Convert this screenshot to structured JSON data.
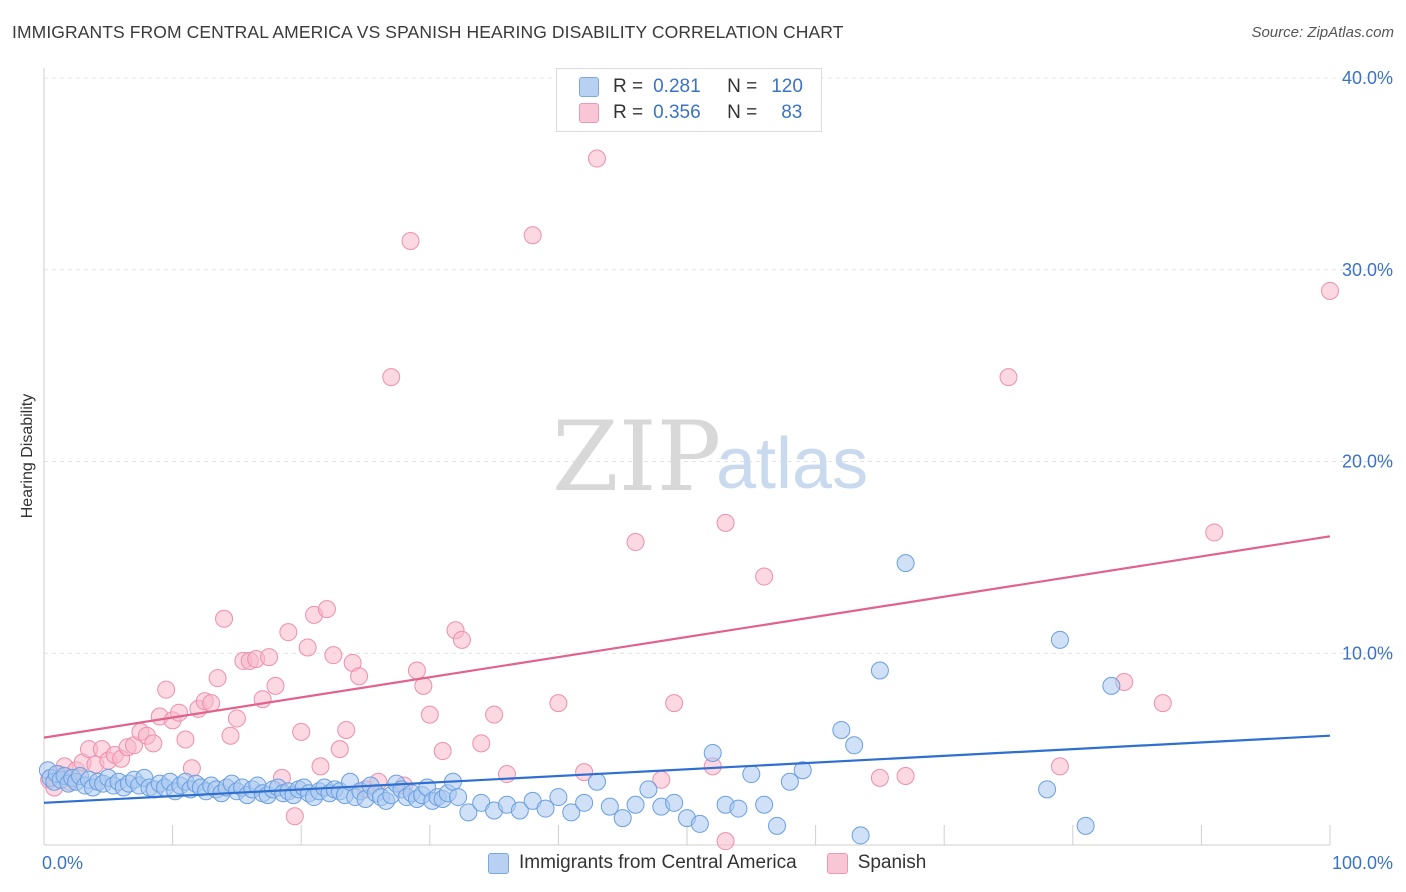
{
  "header": {
    "title": "IMMIGRANTS FROM CENTRAL AMERICA VS SPANISH HEARING DISABILITY CORRELATION CHART",
    "source": "Source: ZipAtlas.com"
  },
  "watermark": {
    "zip": "ZIP",
    "atlas": "atlas"
  },
  "legend": {
    "rows": [
      {
        "r_label": "R =",
        "r_value": "0.281",
        "n_label": "N =",
        "n_value": "120",
        "color": "#a9c8f0"
      },
      {
        "r_label": "R =",
        "r_value": "0.356",
        "n_label": "N =",
        "n_value": "83",
        "color": "#f7b8cb"
      }
    ]
  },
  "bottom_legend": {
    "series1": "Immigrants from Central America",
    "series2": "Spanish"
  },
  "chart_data": {
    "type": "scatter",
    "title": "IMMIGRANTS FROM CENTRAL AMERICA VS SPANISH HEARING DISABILITY CORRELATION CHART",
    "xlabel": "",
    "ylabel": "Hearing Disability",
    "xlim": [
      0,
      100
    ],
    "ylim": [
      0,
      40
    ],
    "x_tick_labels": [
      "0.0%",
      "100.0%"
    ],
    "y_tick_labels": [
      "10.0%",
      "20.0%",
      "30.0%",
      "40.0%"
    ],
    "y_ticks": [
      10,
      20,
      30,
      40
    ],
    "grid": "horizontal dashed",
    "legend_position": "top-center",
    "colors": {
      "blue_fill": "#a9c8f0",
      "blue_stroke": "#6a9fe0",
      "blue_line": "#2e6fd0",
      "pink_fill": "#f7b8cb",
      "pink_stroke": "#ee8fac",
      "pink_line": "#e0628d"
    },
    "series": [
      {
        "name": "Immigrants from Central America",
        "r": 0.281,
        "n": 120,
        "trend": {
          "x": [
            0,
            100
          ],
          "y": [
            2.2,
            5.7
          ]
        },
        "points": [
          [
            0.3,
            3.9
          ],
          [
            0.5,
            3.5
          ],
          [
            0.8,
            3.3
          ],
          [
            1.0,
            3.7
          ],
          [
            1.3,
            3.4
          ],
          [
            1.6,
            3.6
          ],
          [
            1.9,
            3.2
          ],
          [
            2.2,
            3.5
          ],
          [
            2.5,
            3.3
          ],
          [
            2.8,
            3.6
          ],
          [
            3.2,
            3.1
          ],
          [
            3.5,
            3.4
          ],
          [
            3.8,
            3.0
          ],
          [
            4.2,
            3.3
          ],
          [
            4.6,
            3.2
          ],
          [
            5.0,
            3.5
          ],
          [
            5.4,
            3.1
          ],
          [
            5.8,
            3.3
          ],
          [
            6.2,
            3.0
          ],
          [
            6.6,
            3.2
          ],
          [
            7.0,
            3.4
          ],
          [
            7.4,
            3.1
          ],
          [
            7.8,
            3.5
          ],
          [
            8.2,
            3.0
          ],
          [
            8.6,
            2.9
          ],
          [
            9.0,
            3.2
          ],
          [
            9.4,
            3.0
          ],
          [
            9.8,
            3.3
          ],
          [
            10.2,
            2.8
          ],
          [
            10.6,
            3.1
          ],
          [
            11.0,
            3.3
          ],
          [
            11.4,
            2.9
          ],
          [
            11.8,
            3.2
          ],
          [
            12.2,
            3.0
          ],
          [
            12.6,
            2.8
          ],
          [
            13.0,
            3.1
          ],
          [
            13.4,
            2.9
          ],
          [
            13.8,
            2.7
          ],
          [
            14.2,
            3.0
          ],
          [
            14.6,
            3.2
          ],
          [
            15.0,
            2.8
          ],
          [
            15.4,
            3.0
          ],
          [
            15.8,
            2.6
          ],
          [
            16.2,
            2.9
          ],
          [
            16.6,
            3.1
          ],
          [
            17.0,
            2.7
          ],
          [
            17.4,
            2.6
          ],
          [
            17.8,
            2.9
          ],
          [
            18.2,
            3.0
          ],
          [
            18.6,
            2.7
          ],
          [
            19.0,
            2.8
          ],
          [
            19.4,
            2.6
          ],
          [
            19.8,
            2.9
          ],
          [
            20.2,
            3.0
          ],
          [
            20.6,
            2.7
          ],
          [
            21.0,
            2.5
          ],
          [
            21.4,
            2.8
          ],
          [
            21.8,
            3.0
          ],
          [
            22.2,
            2.7
          ],
          [
            22.6,
            2.9
          ],
          [
            23.0,
            2.8
          ],
          [
            23.4,
            2.6
          ],
          [
            23.8,
            3.3
          ],
          [
            24.2,
            2.5
          ],
          [
            24.6,
            2.8
          ],
          [
            25.0,
            2.4
          ],
          [
            25.4,
            3.1
          ],
          [
            25.8,
            2.7
          ],
          [
            26.2,
            2.5
          ],
          [
            26.6,
            2.3
          ],
          [
            27.0,
            2.6
          ],
          [
            27.4,
            3.2
          ],
          [
            27.8,
            2.9
          ],
          [
            28.2,
            2.5
          ],
          [
            28.6,
            2.7
          ],
          [
            29.0,
            2.4
          ],
          [
            29.4,
            2.6
          ],
          [
            29.8,
            3.0
          ],
          [
            30.2,
            2.3
          ],
          [
            30.6,
            2.5
          ],
          [
            31.0,
            2.4
          ],
          [
            31.4,
            2.7
          ],
          [
            31.8,
            3.3
          ],
          [
            32.2,
            2.5
          ],
          [
            33.0,
            1.7
          ],
          [
            34.0,
            2.2
          ],
          [
            35.0,
            1.8
          ],
          [
            36.0,
            2.1
          ],
          [
            37.0,
            1.8
          ],
          [
            38.0,
            2.3
          ],
          [
            39.0,
            1.9
          ],
          [
            40.0,
            2.5
          ],
          [
            41.0,
            1.7
          ],
          [
            42.0,
            2.2
          ],
          [
            43.0,
            3.3
          ],
          [
            44.0,
            2.0
          ],
          [
            45.0,
            1.4
          ],
          [
            46.0,
            2.1
          ],
          [
            47.0,
            2.9
          ],
          [
            48.0,
            2.0
          ],
          [
            49.0,
            2.2
          ],
          [
            50.0,
            1.4
          ],
          [
            51.0,
            1.1
          ],
          [
            52.0,
            4.8
          ],
          [
            53.0,
            2.1
          ],
          [
            54.0,
            1.9
          ],
          [
            55.0,
            3.7
          ],
          [
            56.0,
            2.1
          ],
          [
            57.0,
            1.0
          ],
          [
            58.0,
            3.3
          ],
          [
            59.0,
            3.9
          ],
          [
            62.0,
            6.0
          ],
          [
            63.0,
            5.2
          ],
          [
            65.0,
            9.1
          ],
          [
            67.0,
            14.7
          ],
          [
            78.0,
            2.9
          ],
          [
            79.0,
            10.7
          ],
          [
            81.0,
            1.0
          ],
          [
            83.0,
            8.3
          ],
          [
            63.5,
            0.5
          ]
        ]
      },
      {
        "name": "Spanish",
        "r": 0.356,
        "n": 83,
        "trend": {
          "x": [
            0,
            100
          ],
          "y": [
            5.6,
            16.1
          ]
        },
        "points": [
          [
            0.4,
            3.4
          ],
          [
            0.8,
            3.0
          ],
          [
            1.2,
            3.7
          ],
          [
            1.6,
            4.1
          ],
          [
            2.0,
            3.3
          ],
          [
            2.5,
            3.9
          ],
          [
            3.0,
            4.3
          ],
          [
            3.5,
            5.0
          ],
          [
            4.0,
            4.2
          ],
          [
            4.5,
            5.0
          ],
          [
            5.0,
            4.4
          ],
          [
            5.5,
            4.7
          ],
          [
            6.0,
            4.5
          ],
          [
            6.5,
            5.1
          ],
          [
            7.0,
            5.2
          ],
          [
            7.5,
            5.9
          ],
          [
            8.0,
            5.7
          ],
          [
            8.5,
            5.3
          ],
          [
            9.0,
            6.7
          ],
          [
            9.5,
            8.1
          ],
          [
            10.0,
            6.5
          ],
          [
            10.5,
            6.9
          ],
          [
            11.0,
            5.5
          ],
          [
            11.5,
            4.0
          ],
          [
            12.0,
            7.1
          ],
          [
            12.5,
            7.5
          ],
          [
            13.0,
            7.4
          ],
          [
            13.5,
            8.7
          ],
          [
            14.0,
            11.8
          ],
          [
            14.5,
            5.7
          ],
          [
            15.0,
            6.6
          ],
          [
            15.5,
            9.6
          ],
          [
            16.0,
            9.6
          ],
          [
            16.5,
            9.7
          ],
          [
            17.0,
            7.6
          ],
          [
            17.5,
            9.8
          ],
          [
            18.0,
            8.3
          ],
          [
            18.5,
            3.5
          ],
          [
            19.0,
            11.1
          ],
          [
            19.5,
            1.5
          ],
          [
            20.0,
            5.9
          ],
          [
            20.5,
            10.3
          ],
          [
            21.0,
            12.0
          ],
          [
            21.5,
            4.1
          ],
          [
            22.0,
            12.3
          ],
          [
            22.5,
            9.9
          ],
          [
            23.0,
            5.0
          ],
          [
            23.5,
            6.0
          ],
          [
            24.0,
            9.5
          ],
          [
            24.5,
            8.8
          ],
          [
            25.0,
            2.9
          ],
          [
            26.0,
            3.3
          ],
          [
            27.0,
            24.4
          ],
          [
            28.0,
            3.1
          ],
          [
            28.5,
            31.5
          ],
          [
            29.0,
            9.1
          ],
          [
            29.5,
            8.3
          ],
          [
            30.0,
            6.8
          ],
          [
            31.0,
            4.9
          ],
          [
            32.0,
            11.2
          ],
          [
            32.5,
            10.7
          ],
          [
            34.0,
            5.3
          ],
          [
            35.0,
            6.8
          ],
          [
            36.0,
            3.7
          ],
          [
            38.0,
            31.8
          ],
          [
            40.0,
            7.4
          ],
          [
            42.0,
            3.8
          ],
          [
            43.0,
            35.8
          ],
          [
            46.0,
            15.8
          ],
          [
            48.0,
            3.4
          ],
          [
            49.0,
            7.4
          ],
          [
            52.0,
            4.1
          ],
          [
            53.0,
            16.8
          ],
          [
            56.0,
            14.0
          ],
          [
            65.0,
            3.5
          ],
          [
            67.0,
            3.6
          ],
          [
            75.0,
            24.4
          ],
          [
            79.0,
            4.1
          ],
          [
            84.0,
            8.5
          ],
          [
            87.0,
            7.4
          ],
          [
            91.0,
            16.3
          ],
          [
            100.0,
            28.9
          ],
          [
            53.0,
            0.2
          ]
        ]
      }
    ]
  }
}
